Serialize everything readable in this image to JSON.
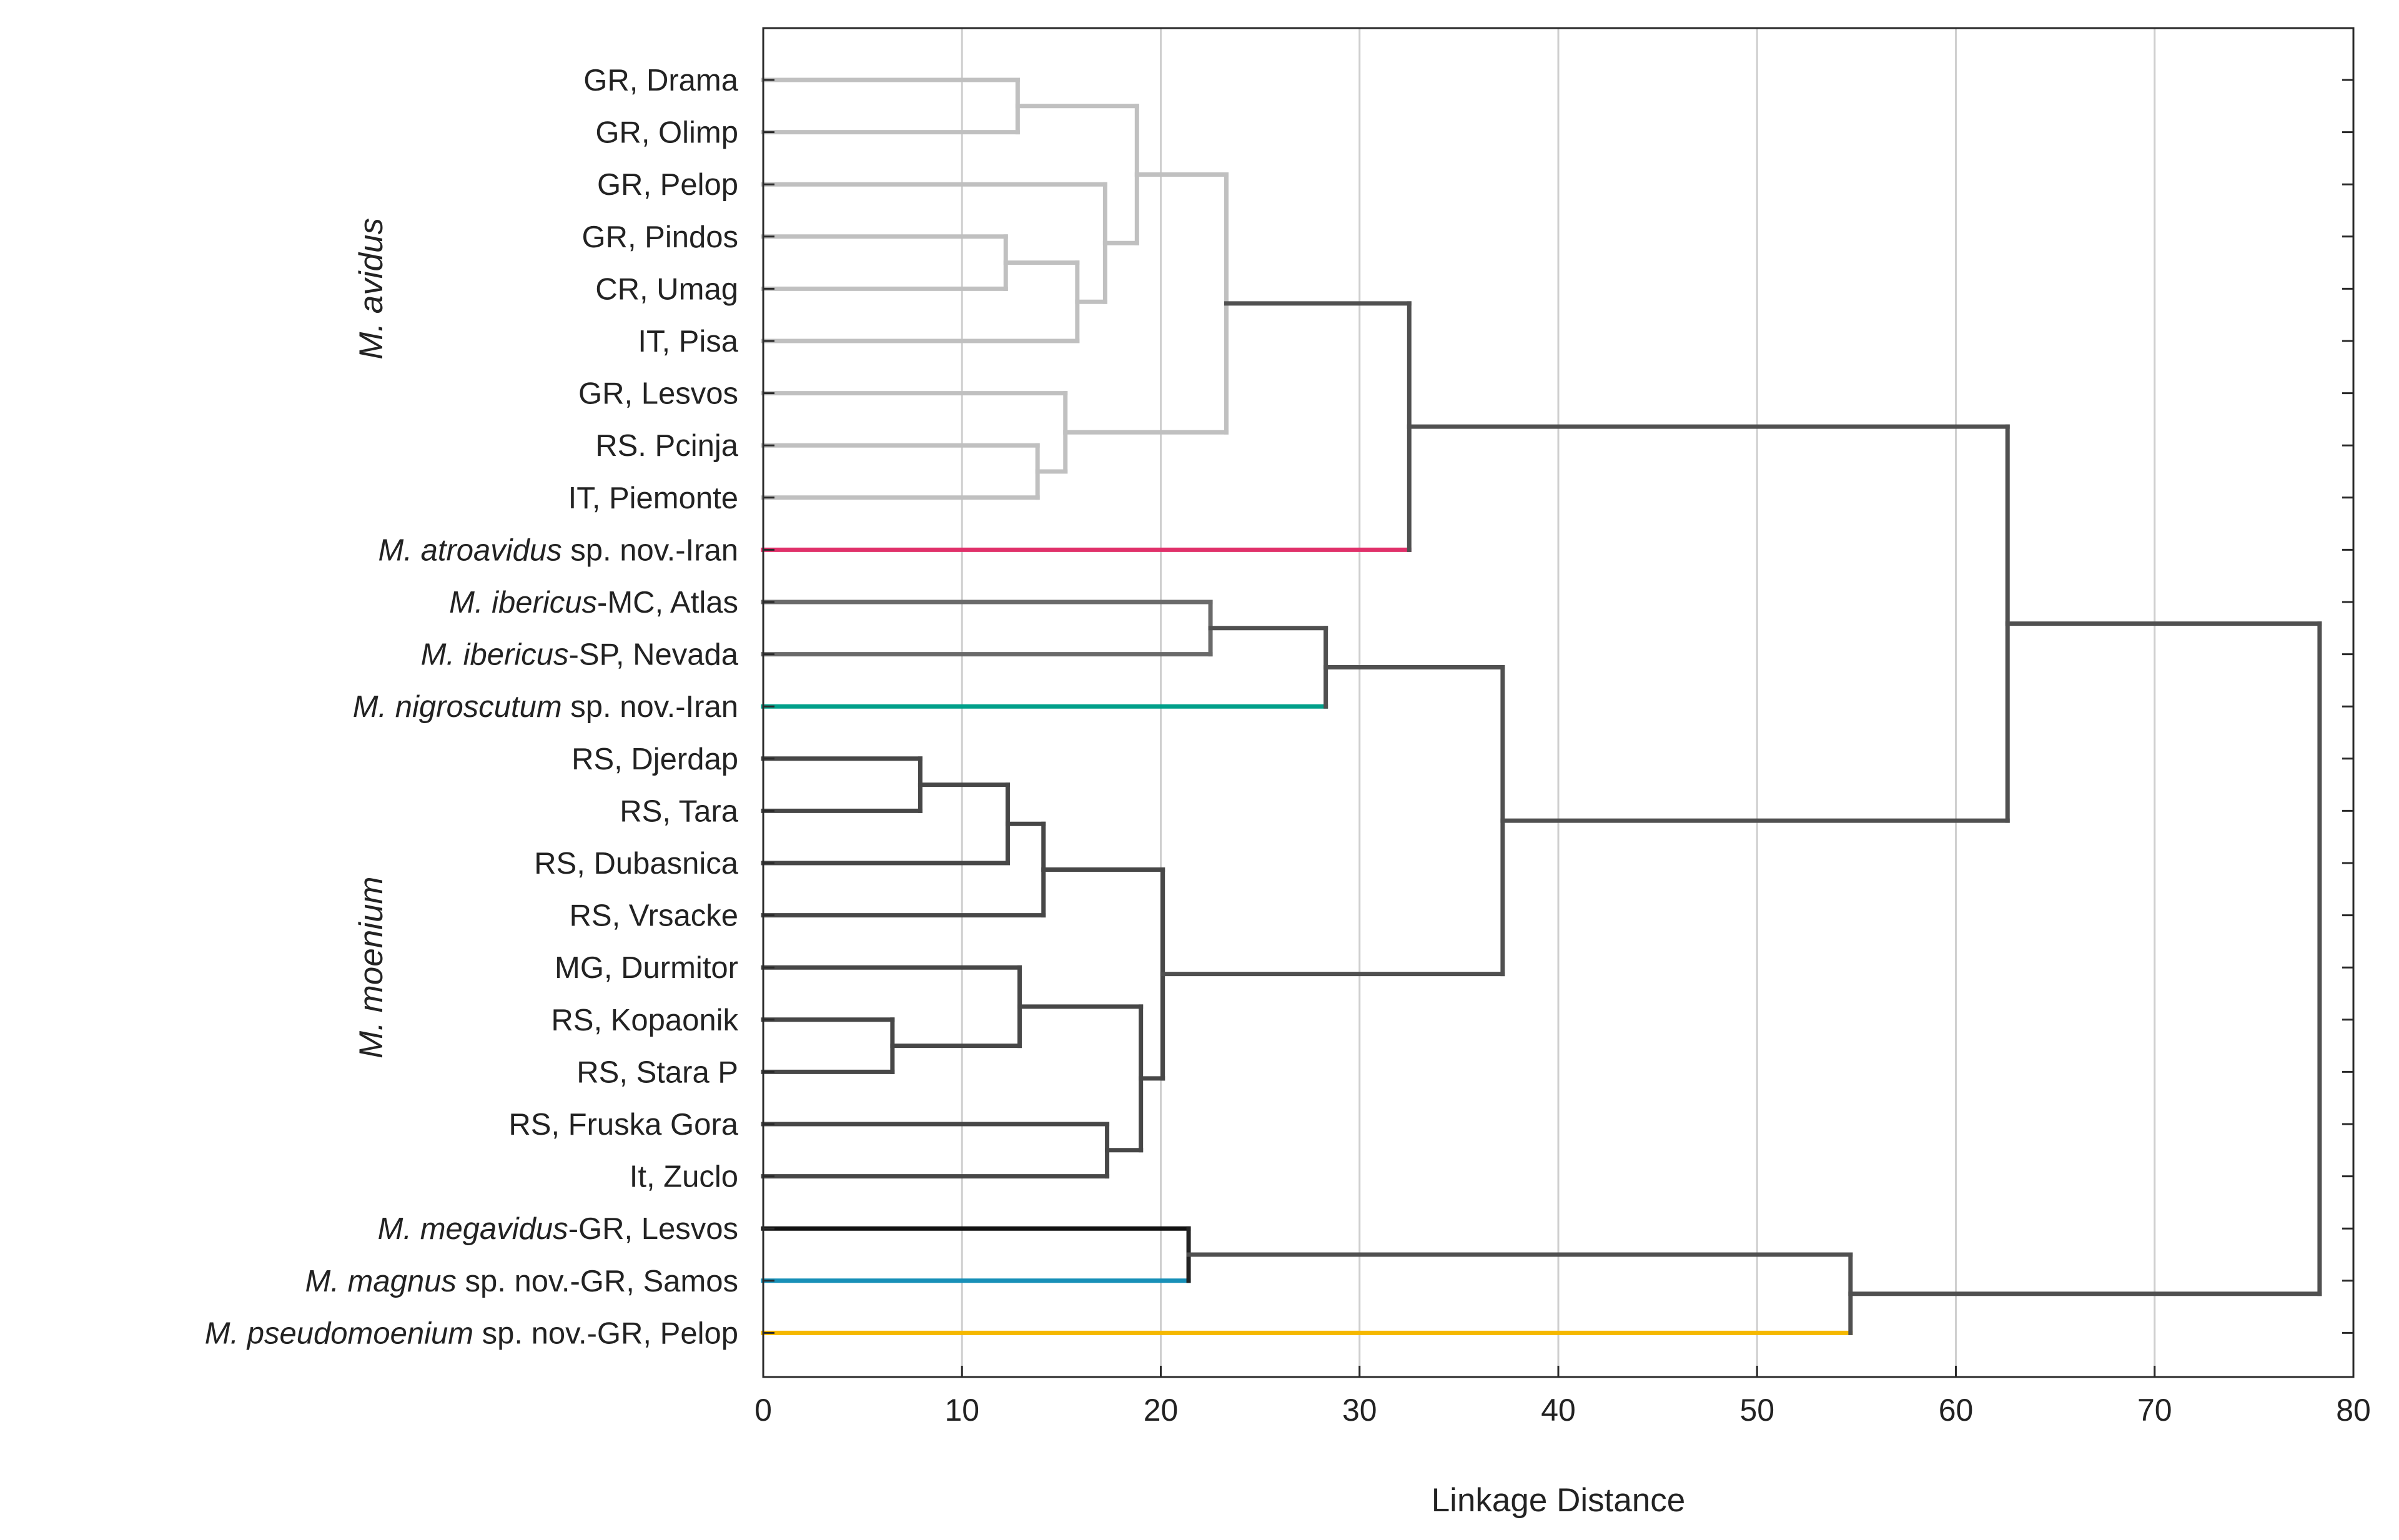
{
  "chart_data": {
    "type": "dendrogram",
    "title": "",
    "xlabel": "Linkage Distance",
    "ylabel": "",
    "xlim": [
      0,
      80
    ],
    "x_ticks": [
      "0",
      "10",
      "20",
      "30",
      "40",
      "50",
      "60",
      "70",
      "80"
    ],
    "grid": true,
    "group_labels": [
      {
        "text": "M. avidus",
        "leaves": [
          0,
          8
        ]
      },
      {
        "text": "M. moenium",
        "leaves": [
          13,
          21
        ]
      }
    ],
    "leaves": [
      {
        "segments": [
          {
            "t": "GR, Drama"
          }
        ]
      },
      {
        "segments": [
          {
            "t": "GR, Olimp"
          }
        ]
      },
      {
        "segments": [
          {
            "t": "GR, Pelop"
          }
        ]
      },
      {
        "segments": [
          {
            "t": "GR, Pindos"
          }
        ]
      },
      {
        "segments": [
          {
            "t": "CR, Umag"
          }
        ]
      },
      {
        "segments": [
          {
            "t": "IT, Pisa"
          }
        ]
      },
      {
        "segments": [
          {
            "t": "GR, Lesvos"
          }
        ]
      },
      {
        "segments": [
          {
            "t": "RS. Pcinja"
          }
        ]
      },
      {
        "segments": [
          {
            "t": "IT, Piemonte"
          }
        ]
      },
      {
        "segments": [
          {
            "t": "M. atroavidus",
            "i": true
          },
          {
            "t": " sp. nov.-Iran"
          }
        ]
      },
      {
        "segments": [
          {
            "t": "M. ibericus",
            "i": true
          },
          {
            "t": "-MC, Atlas"
          }
        ]
      },
      {
        "segments": [
          {
            "t": "M. ibericus",
            "i": true
          },
          {
            "t": "-SP, Nevada"
          }
        ]
      },
      {
        "segments": [
          {
            "t": "M. nigroscutum",
            "i": true
          },
          {
            "t": " sp. nov.-Iran"
          }
        ]
      },
      {
        "segments": [
          {
            "t": "RS, Djerdap"
          }
        ]
      },
      {
        "segments": [
          {
            "t": "RS, Tara"
          }
        ]
      },
      {
        "segments": [
          {
            "t": "RS, Dubasnica"
          }
        ]
      },
      {
        "segments": [
          {
            "t": "RS, Vrsacke"
          }
        ]
      },
      {
        "segments": [
          {
            "t": "MG, Durmitor"
          }
        ]
      },
      {
        "segments": [
          {
            "t": "RS, Kopaonik"
          }
        ]
      },
      {
        "segments": [
          {
            "t": "RS, Stara P"
          }
        ]
      },
      {
        "segments": [
          {
            "t": "RS, Fruska Gora"
          }
        ]
      },
      {
        "segments": [
          {
            "t": "It, Zuclo"
          }
        ]
      },
      {
        "segments": [
          {
            "t": "M. megavidus",
            "i": true
          },
          {
            "t": "-GR, Lesvos"
          }
        ]
      },
      {
        "segments": [
          {
            "t": "M. magnus",
            "i": true
          },
          {
            "t": " sp. nov.-GR, Samos"
          }
        ]
      },
      {
        "segments": [
          {
            "t": "M. pseudomoenium",
            "i": true
          },
          {
            "t": " sp. nov.-GR, Pelop"
          }
        ]
      }
    ],
    "merges": [
      {
        "id": "n1",
        "a": "L0",
        "b": "L1",
        "h": 12.8,
        "color": "#c0c0c0"
      },
      {
        "id": "n2",
        "a": "L3",
        "b": "L4",
        "h": 12.2,
        "color": "#c0c0c0"
      },
      {
        "id": "n3",
        "a": "n2",
        "b": "L5",
        "h": 15.8,
        "color": "#c0c0c0"
      },
      {
        "id": "n4",
        "a": "L2",
        "b": "n3",
        "h": 17.2,
        "color": "#c0c0c0"
      },
      {
        "id": "n5",
        "a": "n1",
        "b": "n4",
        "h": 18.8,
        "color": "#c0c0c0"
      },
      {
        "id": "n6",
        "a": "L7",
        "b": "L8",
        "h": 13.8,
        "color": "#c0c0c0"
      },
      {
        "id": "n7",
        "a": "L6",
        "b": "n6",
        "h": 15.2,
        "color": "#c0c0c0"
      },
      {
        "id": "n8",
        "a": "n5",
        "b": "n7",
        "h": 23.3,
        "color": "#c0c0c0"
      },
      {
        "id": "n9",
        "a": "n8",
        "b": "L9",
        "h": 32.5,
        "color": "#505050"
      },
      {
        "id": "n10",
        "a": "L10",
        "b": "L11",
        "h": 22.5,
        "color": "#6a6a6a"
      },
      {
        "id": "n11",
        "a": "n10",
        "b": "L12",
        "h": 28.3,
        "color": "#505050"
      },
      {
        "id": "n12",
        "a": "L13",
        "b": "L14",
        "h": 7.9,
        "color": "#474747"
      },
      {
        "id": "n13",
        "a": "n12",
        "b": "L15",
        "h": 12.3,
        "color": "#474747"
      },
      {
        "id": "n14",
        "a": "n13",
        "b": "L16",
        "h": 14.1,
        "color": "#474747"
      },
      {
        "id": "n15",
        "a": "L18",
        "b": "L19",
        "h": 6.5,
        "color": "#474747"
      },
      {
        "id": "n16",
        "a": "L17",
        "b": "n15",
        "h": 12.9,
        "color": "#474747"
      },
      {
        "id": "n17",
        "a": "L20",
        "b": "L21",
        "h": 17.3,
        "color": "#474747"
      },
      {
        "id": "n18",
        "a": "n16",
        "b": "n17",
        "h": 19.0,
        "color": "#474747"
      },
      {
        "id": "n19",
        "a": "n14",
        "b": "n18",
        "h": 20.1,
        "color": "#474747"
      },
      {
        "id": "n20",
        "a": "n11",
        "b": "n19",
        "h": 37.2,
        "color": "#505050"
      },
      {
        "id": "n21",
        "a": "n9",
        "b": "n20",
        "h": 62.6,
        "color": "#505050"
      },
      {
        "id": "n22",
        "a": "L22",
        "b": "L23",
        "h": 21.4,
        "color": "#222222"
      },
      {
        "id": "n23",
        "a": "n22",
        "b": "L24",
        "h": 54.7,
        "color": "#505050"
      },
      {
        "id": "n24",
        "a": "n21",
        "b": "n23",
        "h": 78.3,
        "color": "#505050"
      }
    ],
    "leaf_colors": {
      "L9": "#e0306a",
      "L12": "#00a08a",
      "L22": "#111111",
      "L23": "#1890b8",
      "L24": "#f5b800"
    }
  }
}
